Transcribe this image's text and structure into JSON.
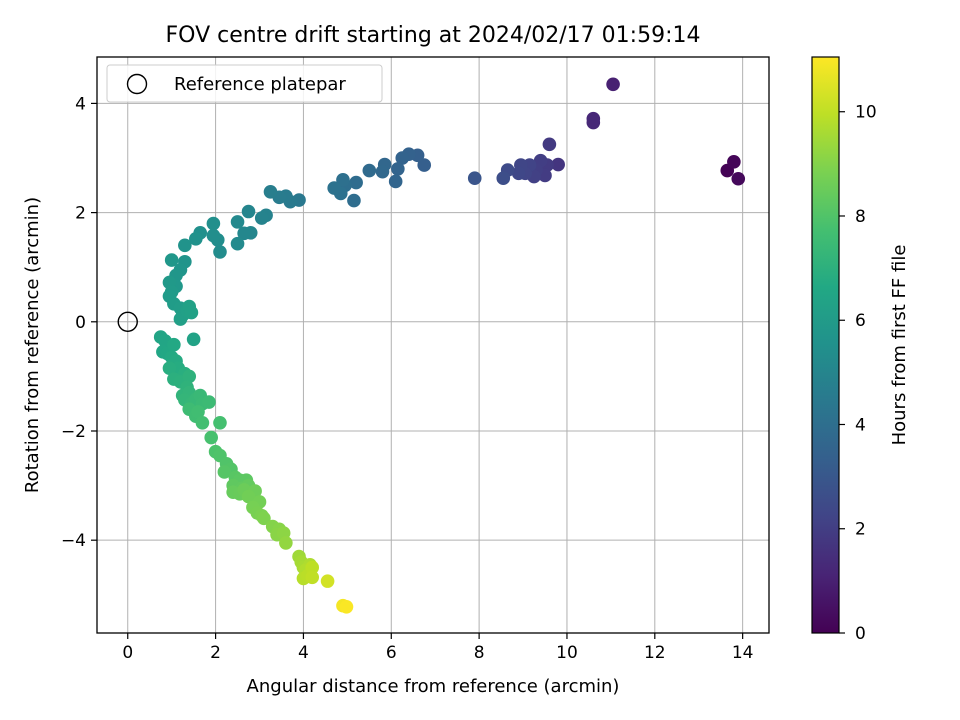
{
  "chart_data": {
    "type": "scatter",
    "title": "FOV centre drift starting at 2024/02/17 01:59:14",
    "xlabel": "Angular distance from reference (arcmin)",
    "ylabel": "Rotation from reference (arcmin)",
    "xlim": [
      -0.7,
      14.6
    ],
    "ylim": [
      -5.7,
      4.85
    ],
    "xticks": [
      0,
      2,
      4,
      6,
      8,
      10,
      12,
      14
    ],
    "yticks": [
      -4,
      -2,
      0,
      2,
      4
    ],
    "xtick_labels": [
      "0",
      "2",
      "4",
      "6",
      "8",
      "10",
      "12",
      "14"
    ],
    "ytick_labels": [
      "−4",
      "−2",
      "0",
      "2",
      "4"
    ],
    "grid": true,
    "colormap": "viridis",
    "colorbar": {
      "label": "Hours from first FF file",
      "range": [
        0,
        11.05
      ],
      "ticks": [
        0,
        2,
        4,
        6,
        8,
        10
      ],
      "tick_labels": [
        "0",
        "2",
        "4",
        "6",
        "8",
        "10"
      ]
    },
    "legend": {
      "position": "top-left",
      "entries": [
        {
          "label": "Reference platepar",
          "marker": "open-circle"
        }
      ]
    },
    "reference_point": {
      "x": 0,
      "y": 0
    },
    "series": [
      {
        "points": [
          {
            "x": 13.65,
            "y": 2.77,
            "h": 0.05
          },
          {
            "x": 13.8,
            "y": 2.93,
            "h": 0.15
          },
          {
            "x": 13.9,
            "y": 2.62,
            "h": 0.25
          },
          {
            "x": 11.05,
            "y": 4.35,
            "h": 1.0
          },
          {
            "x": 10.6,
            "y": 3.72,
            "h": 1.2
          },
          {
            "x": 10.6,
            "y": 3.65,
            "h": 1.25
          },
          {
            "x": 9.8,
            "y": 2.88,
            "h": 1.7
          },
          {
            "x": 9.6,
            "y": 3.25,
            "h": 1.85
          },
          {
            "x": 9.55,
            "y": 2.87,
            "h": 1.9
          },
          {
            "x": 9.5,
            "y": 2.68,
            "h": 1.95
          },
          {
            "x": 9.4,
            "y": 2.95,
            "h": 2.0
          },
          {
            "x": 9.3,
            "y": 2.78,
            "h": 2.05
          },
          {
            "x": 9.25,
            "y": 2.66,
            "h": 2.1
          },
          {
            "x": 9.15,
            "y": 2.87,
            "h": 2.2
          },
          {
            "x": 9.05,
            "y": 2.72,
            "h": 2.25
          },
          {
            "x": 8.95,
            "y": 2.87,
            "h": 2.3
          },
          {
            "x": 8.9,
            "y": 2.72,
            "h": 2.35
          },
          {
            "x": 8.65,
            "y": 2.78,
            "h": 2.5
          },
          {
            "x": 8.55,
            "y": 2.63,
            "h": 2.6
          },
          {
            "x": 7.9,
            "y": 2.63,
            "h": 2.9
          },
          {
            "x": 6.75,
            "y": 2.87,
            "h": 3.3
          },
          {
            "x": 6.6,
            "y": 3.05,
            "h": 3.35
          },
          {
            "x": 6.4,
            "y": 3.07,
            "h": 3.45
          },
          {
            "x": 6.25,
            "y": 3.0,
            "h": 3.5
          },
          {
            "x": 6.15,
            "y": 2.8,
            "h": 3.55
          },
          {
            "x": 6.1,
            "y": 2.57,
            "h": 3.6
          },
          {
            "x": 5.85,
            "y": 2.88,
            "h": 3.65
          },
          {
            "x": 5.8,
            "y": 2.75,
            "h": 3.7
          },
          {
            "x": 5.5,
            "y": 2.77,
            "h": 3.8
          },
          {
            "x": 5.2,
            "y": 2.55,
            "h": 3.9
          },
          {
            "x": 5.15,
            "y": 2.22,
            "h": 3.95
          },
          {
            "x": 4.95,
            "y": 2.5,
            "h": 4.0
          },
          {
            "x": 4.9,
            "y": 2.6,
            "h": 4.05
          },
          {
            "x": 4.85,
            "y": 2.35,
            "h": 4.1
          },
          {
            "x": 4.7,
            "y": 2.45,
            "h": 4.15
          },
          {
            "x": 3.9,
            "y": 2.23,
            "h": 4.4
          },
          {
            "x": 3.7,
            "y": 2.2,
            "h": 4.5
          },
          {
            "x": 3.6,
            "y": 2.3,
            "h": 4.55
          },
          {
            "x": 3.45,
            "y": 2.28,
            "h": 4.6
          },
          {
            "x": 3.25,
            "y": 2.38,
            "h": 4.7
          },
          {
            "x": 3.15,
            "y": 1.95,
            "h": 4.85
          },
          {
            "x": 3.05,
            "y": 1.9,
            "h": 4.9
          },
          {
            "x": 2.75,
            "y": 2.02,
            "h": 5.0
          },
          {
            "x": 2.8,
            "y": 1.63,
            "h": 5.05
          },
          {
            "x": 2.65,
            "y": 1.62,
            "h": 5.1
          },
          {
            "x": 2.5,
            "y": 1.83,
            "h": 5.15
          },
          {
            "x": 2.5,
            "y": 1.43,
            "h": 5.2
          },
          {
            "x": 2.1,
            "y": 1.28,
            "h": 5.3
          },
          {
            "x": 2.05,
            "y": 1.5,
            "h": 5.35
          },
          {
            "x": 1.95,
            "y": 1.58,
            "h": 5.4
          },
          {
            "x": 1.95,
            "y": 1.8,
            "h": 5.45
          },
          {
            "x": 1.65,
            "y": 1.63,
            "h": 5.5
          },
          {
            "x": 1.55,
            "y": 1.52,
            "h": 5.55
          },
          {
            "x": 1.3,
            "y": 1.4,
            "h": 5.6
          },
          {
            "x": 1.3,
            "y": 1.1,
            "h": 5.65
          },
          {
            "x": 1.2,
            "y": 0.95,
            "h": 5.7
          },
          {
            "x": 1.1,
            "y": 0.85,
            "h": 5.75
          },
          {
            "x": 1.0,
            "y": 1.13,
            "h": 5.8
          },
          {
            "x": 1.1,
            "y": 0.65,
            "h": 5.85
          },
          {
            "x": 0.95,
            "y": 0.72,
            "h": 5.9
          },
          {
            "x": 1.0,
            "y": 0.55,
            "h": 5.95
          },
          {
            "x": 0.95,
            "y": 0.47,
            "h": 6.0
          },
          {
            "x": 1.05,
            "y": 0.33,
            "h": 6.05
          },
          {
            "x": 1.2,
            "y": 0.25,
            "h": 6.1
          },
          {
            "x": 1.25,
            "y": 0.12,
            "h": 6.15
          },
          {
            "x": 1.2,
            "y": 0.05,
            "h": 6.2
          },
          {
            "x": 1.35,
            "y": 0.2,
            "h": 6.25
          },
          {
            "x": 1.4,
            "y": 0.28,
            "h": 6.3
          },
          {
            "x": 1.45,
            "y": 0.17,
            "h": 6.3
          },
          {
            "x": 1.5,
            "y": -0.32,
            "h": 6.35
          },
          {
            "x": 0.75,
            "y": -0.28,
            "h": 6.45
          },
          {
            "x": 0.85,
            "y": -0.35,
            "h": 6.5
          },
          {
            "x": 0.8,
            "y": -0.55,
            "h": 6.55
          },
          {
            "x": 0.9,
            "y": -0.58,
            "h": 6.6
          },
          {
            "x": 1.05,
            "y": -0.42,
            "h": 6.65
          },
          {
            "x": 1.0,
            "y": -0.65,
            "h": 6.7
          },
          {
            "x": 1.1,
            "y": -0.72,
            "h": 6.75
          },
          {
            "x": 1.15,
            "y": -0.85,
            "h": 6.8
          },
          {
            "x": 0.95,
            "y": -0.85,
            "h": 6.85
          },
          {
            "x": 1.3,
            "y": -0.95,
            "h": 6.9
          },
          {
            "x": 1.05,
            "y": -1.05,
            "h": 6.95
          },
          {
            "x": 1.2,
            "y": -1.1,
            "h": 7.0
          },
          {
            "x": 1.4,
            "y": -1.0,
            "h": 7.05
          },
          {
            "x": 1.35,
            "y": -1.2,
            "h": 7.1
          },
          {
            "x": 1.25,
            "y": -1.35,
            "h": 7.15
          },
          {
            "x": 1.4,
            "y": -1.3,
            "h": 7.2
          },
          {
            "x": 1.3,
            "y": -1.43,
            "h": 7.25
          },
          {
            "x": 1.45,
            "y": -1.5,
            "h": 7.3
          },
          {
            "x": 1.55,
            "y": -1.42,
            "h": 7.35
          },
          {
            "x": 1.65,
            "y": -1.35,
            "h": 7.4
          },
          {
            "x": 1.7,
            "y": -1.5,
            "h": 7.45
          },
          {
            "x": 1.85,
            "y": -1.47,
            "h": 7.5
          },
          {
            "x": 1.4,
            "y": -1.6,
            "h": 7.55
          },
          {
            "x": 1.55,
            "y": -1.73,
            "h": 7.6
          },
          {
            "x": 1.6,
            "y": -1.65,
            "h": 7.65
          },
          {
            "x": 1.7,
            "y": -1.85,
            "h": 7.7
          },
          {
            "x": 2.1,
            "y": -1.85,
            "h": 7.75
          },
          {
            "x": 1.9,
            "y": -2.12,
            "h": 7.8
          },
          {
            "x": 2.0,
            "y": -2.38,
            "h": 7.9
          },
          {
            "x": 2.1,
            "y": -2.45,
            "h": 7.95
          },
          {
            "x": 2.25,
            "y": -2.6,
            "h": 8.0
          },
          {
            "x": 2.35,
            "y": -2.7,
            "h": 8.05
          },
          {
            "x": 2.2,
            "y": -2.75,
            "h": 8.1
          },
          {
            "x": 2.45,
            "y": -2.85,
            "h": 8.15
          },
          {
            "x": 2.55,
            "y": -2.9,
            "h": 8.2
          },
          {
            "x": 2.7,
            "y": -2.9,
            "h": 8.25
          },
          {
            "x": 2.4,
            "y": -3.0,
            "h": 8.3
          },
          {
            "x": 2.6,
            "y": -3.05,
            "h": 8.35
          },
          {
            "x": 2.75,
            "y": -3.0,
            "h": 8.4
          },
          {
            "x": 2.4,
            "y": -3.12,
            "h": 8.45
          },
          {
            "x": 2.55,
            "y": -3.15,
            "h": 8.5
          },
          {
            "x": 2.65,
            "y": -3.08,
            "h": 8.55
          },
          {
            "x": 2.9,
            "y": -3.1,
            "h": 8.6
          },
          {
            "x": 2.75,
            "y": -3.2,
            "h": 8.65
          },
          {
            "x": 3.0,
            "y": -3.3,
            "h": 8.7
          },
          {
            "x": 2.85,
            "y": -3.4,
            "h": 8.75
          },
          {
            "x": 2.95,
            "y": -3.5,
            "h": 8.8
          },
          {
            "x": 3.05,
            "y": -3.55,
            "h": 8.85
          },
          {
            "x": 3.1,
            "y": -3.6,
            "h": 8.9
          },
          {
            "x": 3.3,
            "y": -3.75,
            "h": 9.0
          },
          {
            "x": 3.45,
            "y": -3.8,
            "h": 9.05
          },
          {
            "x": 3.4,
            "y": -3.9,
            "h": 9.1
          },
          {
            "x": 3.55,
            "y": -3.87,
            "h": 9.15
          },
          {
            "x": 3.6,
            "y": -4.05,
            "h": 9.25
          },
          {
            "x": 3.9,
            "y": -4.3,
            "h": 9.45
          },
          {
            "x": 3.95,
            "y": -4.4,
            "h": 9.55
          },
          {
            "x": 4.0,
            "y": -4.5,
            "h": 9.6
          },
          {
            "x": 4.15,
            "y": -4.45,
            "h": 9.7
          },
          {
            "x": 4.05,
            "y": -4.55,
            "h": 9.75
          },
          {
            "x": 4.0,
            "y": -4.7,
            "h": 9.85
          },
          {
            "x": 4.1,
            "y": -4.65,
            "h": 9.9
          },
          {
            "x": 4.2,
            "y": -4.5,
            "h": 9.95
          },
          {
            "x": 4.2,
            "y": -4.68,
            "h": 10.0
          },
          {
            "x": 4.55,
            "y": -4.75,
            "h": 10.3
          },
          {
            "x": 4.9,
            "y": -5.2,
            "h": 10.9
          },
          {
            "x": 4.98,
            "y": -5.22,
            "h": 11.0
          }
        ]
      }
    ]
  }
}
